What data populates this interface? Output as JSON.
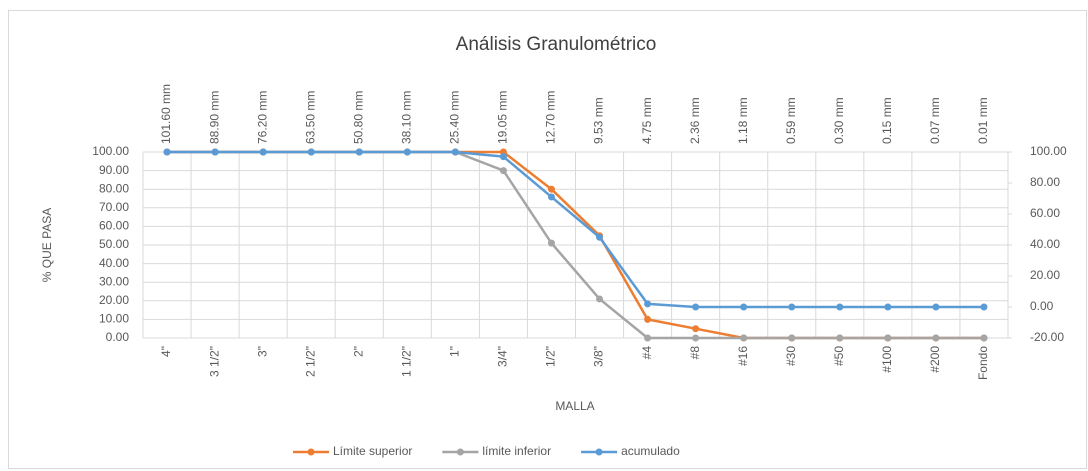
{
  "chart_data": {
    "type": "line",
    "title": "Análisis Granulométrico",
    "xlabel": "MALLA",
    "ylabel": "% QUE PASA",
    "categories": [
      "4\"",
      "3 1/2\"",
      "3\"",
      "2 1/2\"",
      "2\"",
      "1 1/2\"",
      "1\"",
      "3/4\"",
      "1/2\"",
      "3/8\"",
      "#4",
      "#8",
      "#16",
      "#30",
      "#50",
      "#100",
      "#200",
      "Fondo"
    ],
    "secondary_categories": [
      "101.60 mm",
      "88.90 mm",
      "76.20 mm",
      "63.50 mm",
      "50.80 mm",
      "38.10 mm",
      "25.40 mm",
      "19.05 mm",
      "12.70 mm",
      "9.53 mm",
      "4.75 mm",
      "2.36 mm",
      "1.18 mm",
      "0.59 mm",
      "0.30 mm",
      "0.15 mm",
      "0.07 mm",
      "0.01 mm"
    ],
    "series": [
      {
        "name": "Límite superior",
        "color": "#ed7d31",
        "axis": "y",
        "values": [
          100,
          100,
          100,
          100,
          100,
          100,
          100,
          100,
          80,
          55,
          10,
          5,
          0,
          0,
          0,
          0,
          0,
          0
        ]
      },
      {
        "name": "límite inferior",
        "color": "#a5a5a5",
        "axis": "y",
        "values": [
          100,
          100,
          100,
          100,
          100,
          100,
          100,
          90,
          51,
          21,
          0,
          0,
          0,
          0,
          0,
          0,
          0,
          0
        ]
      },
      {
        "name": "acumulado",
        "color": "#5b9bd5",
        "axis": "y2",
        "values": [
          100,
          100,
          100,
          100,
          100,
          100,
          100,
          97,
          71,
          45,
          2,
          0,
          0,
          0,
          0,
          0,
          0,
          0
        ]
      }
    ],
    "ylim": [
      0,
      100
    ],
    "yticks": [
      {
        "value": 0,
        "label": "0.00"
      },
      {
        "value": 10,
        "label": "10.00"
      },
      {
        "value": 20,
        "label": "20.00"
      },
      {
        "value": 30,
        "label": "30.00"
      },
      {
        "value": 40,
        "label": "40.00"
      },
      {
        "value": 50,
        "label": "50.00"
      },
      {
        "value": 60,
        "label": "60.00"
      },
      {
        "value": 70,
        "label": "70.00"
      },
      {
        "value": 80,
        "label": "80.00"
      },
      {
        "value": 90,
        "label": "90.00"
      },
      {
        "value": 100,
        "label": "100.00"
      }
    ],
    "y2lim": [
      -20,
      100
    ],
    "y2ticks": [
      {
        "value": -20,
        "label": "-20.00"
      },
      {
        "value": 0,
        "label": "0.00"
      },
      {
        "value": 20,
        "label": "20.00"
      },
      {
        "value": 40,
        "label": "40.00"
      },
      {
        "value": 60,
        "label": "60.00"
      },
      {
        "value": 80,
        "label": "80.00"
      },
      {
        "value": 100,
        "label": "100.00"
      }
    ],
    "grid": true,
    "legend": "bottom"
  }
}
